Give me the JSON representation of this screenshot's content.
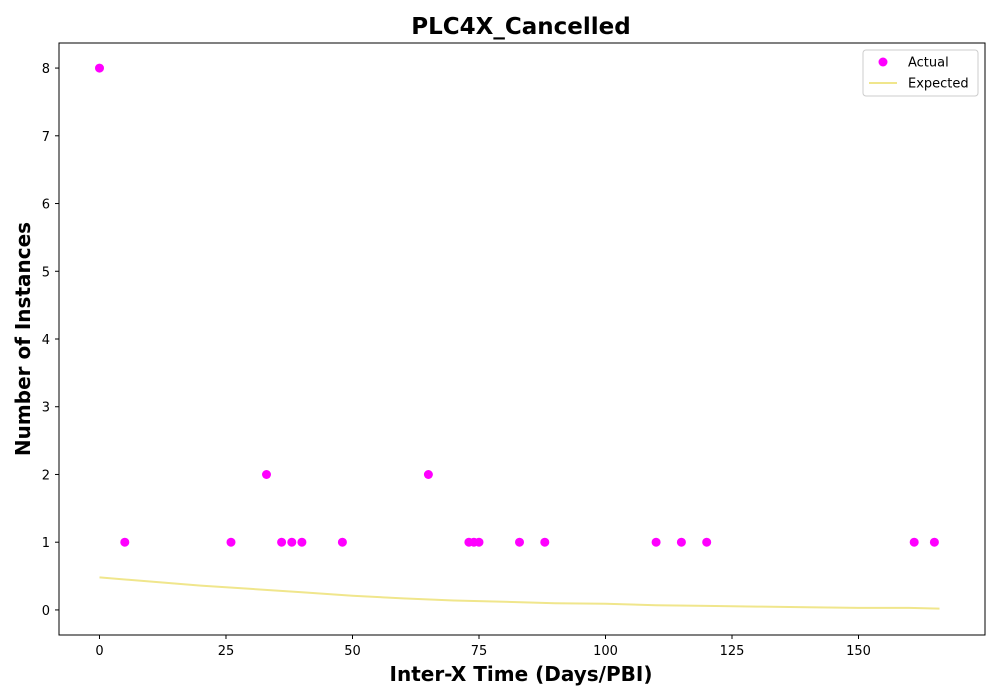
{
  "chart_data": {
    "type": "scatter",
    "title": "PLC4X_Cancelled",
    "xlabel": "Inter-X Time (Days/PBI)",
    "ylabel": "Number of Instances",
    "xlim": [
      -8,
      175
    ],
    "ylim": [
      -0.37,
      8.37
    ],
    "xticks": [
      0,
      25,
      50,
      75,
      100,
      125,
      150
    ],
    "yticks": [
      0,
      1,
      2,
      3,
      4,
      5,
      6,
      7,
      8
    ],
    "grid": false,
    "legend_position": "top-right",
    "series": [
      {
        "name": "Actual",
        "kind": "scatter",
        "color": "#ff00ff",
        "points": [
          [
            0,
            8
          ],
          [
            5,
            1
          ],
          [
            26,
            1
          ],
          [
            33,
            2
          ],
          [
            36,
            1
          ],
          [
            38,
            1
          ],
          [
            40,
            1
          ],
          [
            48,
            1
          ],
          [
            65,
            2
          ],
          [
            73,
            1
          ],
          [
            74,
            1
          ],
          [
            75,
            1
          ],
          [
            83,
            1
          ],
          [
            88,
            1
          ],
          [
            110,
            1
          ],
          [
            115,
            1
          ],
          [
            120,
            1
          ],
          [
            161,
            1
          ],
          [
            165,
            1
          ]
        ]
      },
      {
        "name": "Expected",
        "kind": "line",
        "color": "#f0e68c",
        "points": [
          [
            0,
            0.48
          ],
          [
            10,
            0.42
          ],
          [
            20,
            0.36
          ],
          [
            30,
            0.31
          ],
          [
            40,
            0.26
          ],
          [
            50,
            0.21
          ],
          [
            60,
            0.17
          ],
          [
            70,
            0.14
          ],
          [
            80,
            0.12
          ],
          [
            90,
            0.1
          ],
          [
            100,
            0.09
          ],
          [
            110,
            0.07
          ],
          [
            120,
            0.06
          ],
          [
            130,
            0.05
          ],
          [
            140,
            0.04
          ],
          [
            150,
            0.03
          ],
          [
            160,
            0.03
          ],
          [
            166,
            0.02
          ]
        ]
      }
    ]
  }
}
